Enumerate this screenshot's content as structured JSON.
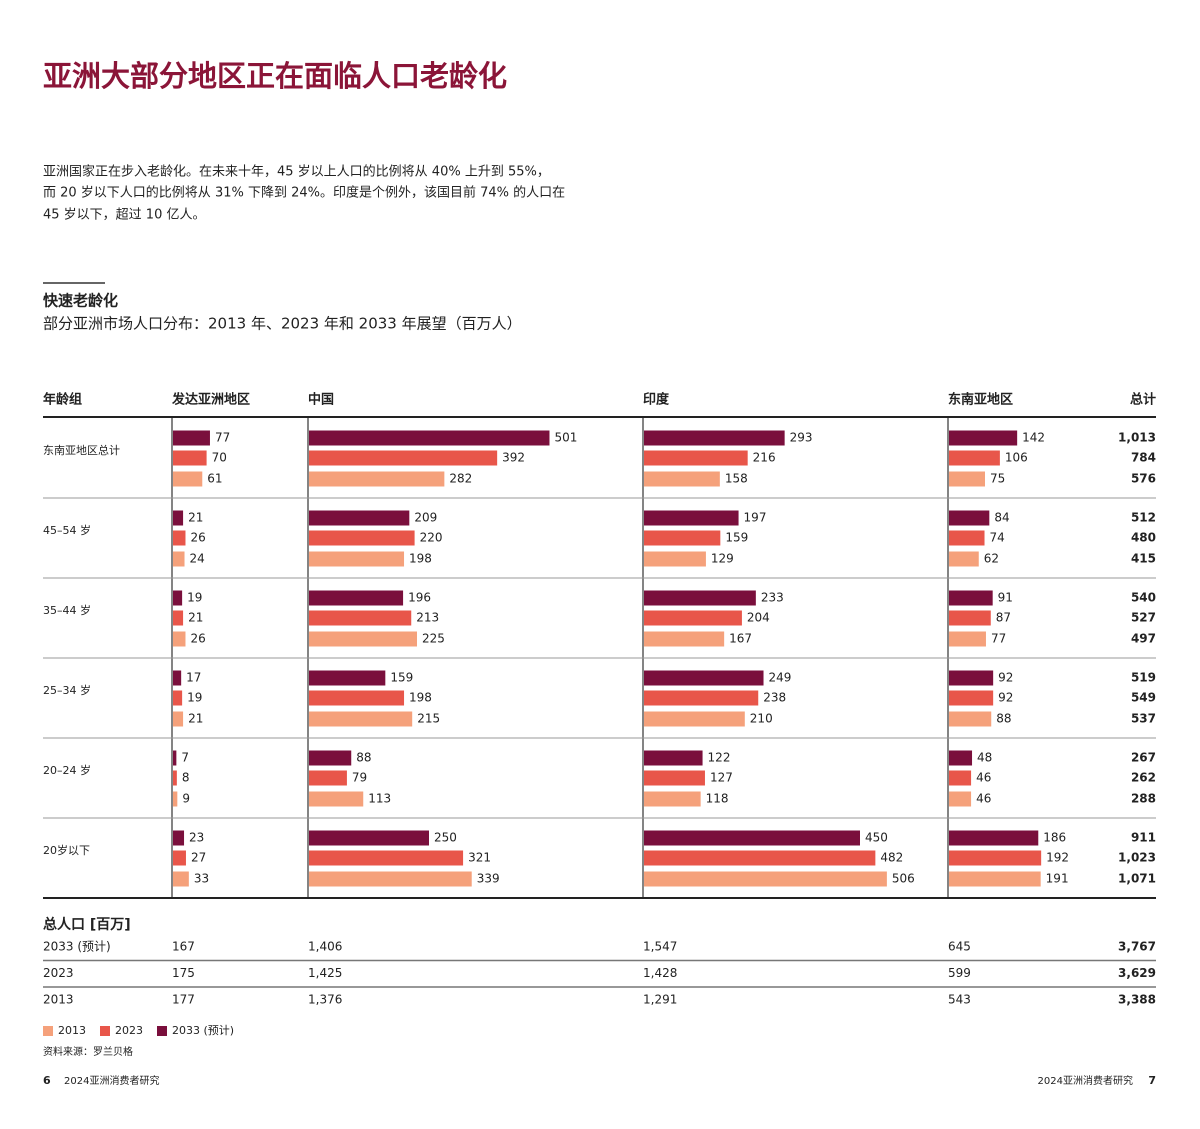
{
  "header": {
    "title": "亚洲大部分地区正在面临人口老龄化"
  },
  "intro": {
    "lines": [
      "亚洲国家正在步入老龄化。在未来十年，45 岁以上人口的比例将从 40% 上升到 55%，",
      "而 20 岁以下人口的比例将从 31% 下降到 24%。印度是个例外，该国目前 74% 的人口在",
      "45 岁以下，超过 10 亿人。"
    ]
  },
  "chart_data": {
    "type": "bar",
    "title": "快速老龄化",
    "subtitle": "部分亚洲市场人口分布：2013 年、2023 年和 2033 年展望（百万人）",
    "row_header": "年龄组",
    "categories": [
      "东南亚地区总计",
      "45–54 岁",
      "35–44 岁",
      "25–34 岁",
      "20–24 岁",
      "20岁以下"
    ],
    "series": [
      {
        "name": "2033 (预计)",
        "color": "#7a0f3c"
      },
      {
        "name": "2023",
        "color": "#e8564a"
      },
      {
        "name": "2013",
        "color": "#f5a17b"
      }
    ],
    "panels": [
      {
        "name": "发达亚洲地区",
        "values": [
          [
            77,
            21,
            19,
            17,
            7,
            23
          ],
          [
            70,
            26,
            21,
            19,
            8,
            27
          ],
          [
            61,
            24,
            26,
            21,
            9,
            33
          ]
        ]
      },
      {
        "name": "中国",
        "values": [
          [
            501,
            209,
            196,
            159,
            88,
            250
          ],
          [
            392,
            220,
            213,
            198,
            79,
            321
          ],
          [
            282,
            198,
            225,
            215,
            113,
            339
          ]
        ]
      },
      {
        "name": "印度",
        "values": [
          [
            293,
            197,
            233,
            249,
            122,
            450
          ],
          [
            216,
            159,
            204,
            238,
            127,
            482
          ],
          [
            158,
            129,
            167,
            210,
            118,
            506
          ]
        ]
      },
      {
        "name": "东南亚地区",
        "values": [
          [
            142,
            84,
            91,
            92,
            48,
            186
          ],
          [
            106,
            74,
            87,
            92,
            46,
            192
          ],
          [
            75,
            62,
            77,
            88,
            46,
            191
          ]
        ]
      }
    ],
    "totals": {
      "name": "总计",
      "values": [
        [
          1013,
          512,
          540,
          519,
          267,
          911
        ],
        [
          784,
          480,
          527,
          549,
          262,
          1023
        ],
        [
          576,
          415,
          497,
          537,
          288,
          1071
        ]
      ],
      "value_labels": [
        [
          "1,013",
          "512",
          "540",
          "519",
          "267",
          "911"
        ],
        [
          "784",
          "480",
          "527",
          "549",
          "262",
          "1,023"
        ],
        [
          "576",
          "415",
          "497",
          "537",
          "288",
          "1,071"
        ]
      ]
    }
  },
  "totals_table": {
    "title": "总人口 [百万]",
    "rows": [
      {
        "label": "2033 (预计)",
        "cells": [
          "167",
          "1,406",
          "1,547",
          "645",
          "3,767"
        ]
      },
      {
        "label": "2023",
        "cells": [
          "175",
          "1,425",
          "1,428",
          "599",
          "3,629"
        ]
      },
      {
        "label": "2013",
        "cells": [
          "177",
          "1,376",
          "1,291",
          "543",
          "3,388"
        ]
      }
    ]
  },
  "source": "资料来源：罗兰贝格",
  "footer": {
    "left_page": 6,
    "left_text": "2024亚洲消费者研究",
    "right_text": "2024亚洲消费者研究",
    "right_page": 7
  }
}
